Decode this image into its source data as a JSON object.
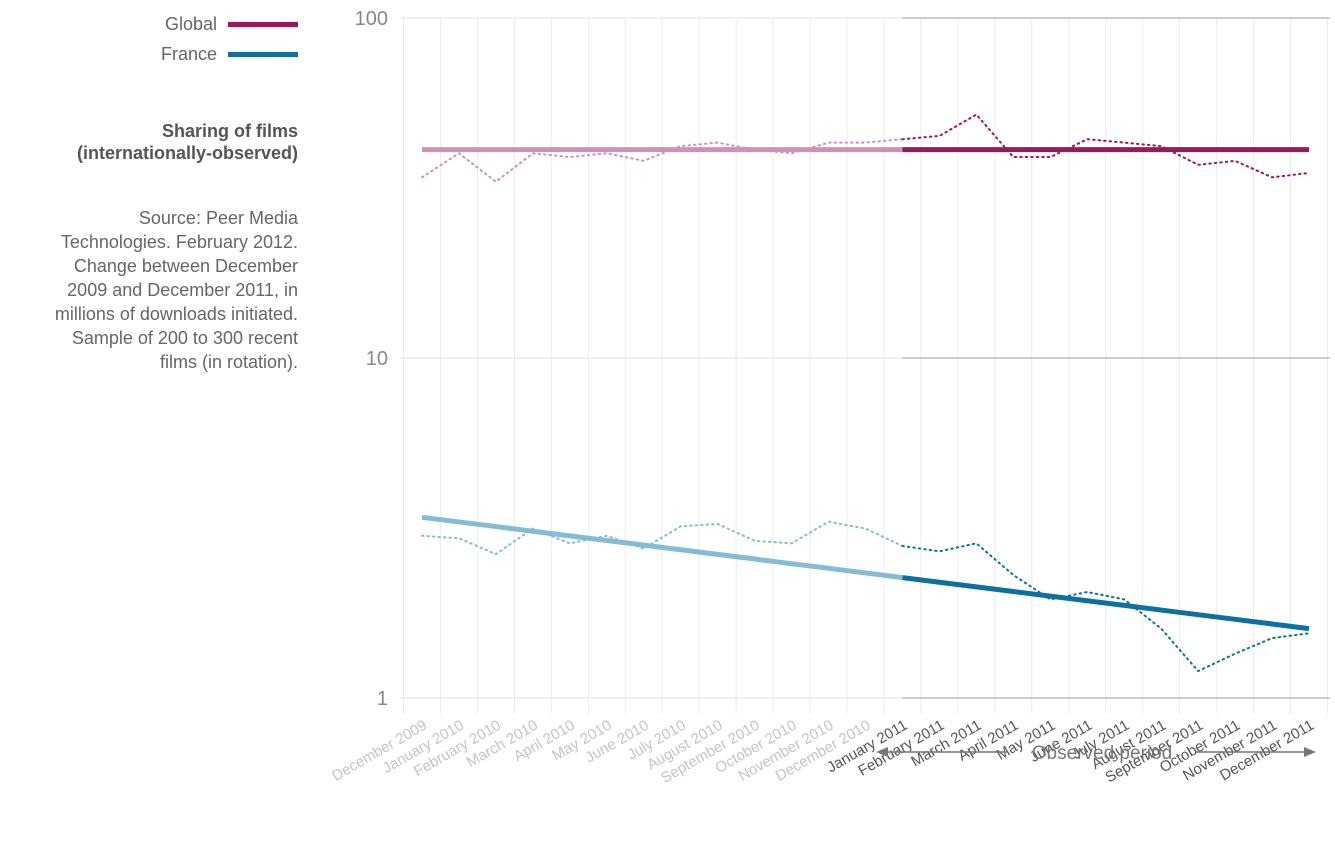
{
  "legend": [
    {
      "label": "Global",
      "color": "#99185e"
    },
    {
      "label": "France",
      "color": "#0e70a1"
    }
  ],
  "heading": {
    "title_line1": "Sharing of films",
    "title_line2": "(internationally-observed)"
  },
  "source": {
    "lines": [
      "Source: Peer Media",
      "Technologies. February 2012.",
      "Change between December",
      "2009 and December 2011, in",
      "millions of downloads initiated.",
      "Sample of 200 to 300 recent",
      "films (in rotation)."
    ]
  },
  "observed_label": "Observed period",
  "chart_data": {
    "type": "line",
    "yscale": "log",
    "ylim": [
      1,
      100
    ],
    "yticks": [
      {
        "value": 1,
        "label": "1"
      },
      {
        "value": 10,
        "label": "10"
      },
      {
        "value": 100,
        "label": "100"
      }
    ],
    "grid": true,
    "legend_position": "top-left",
    "observed_period": {
      "start": "January 2011",
      "end": "December 2011"
    },
    "categories": [
      "December 2009",
      "January 2010",
      "February 2010",
      "March 2010",
      "April 2010",
      "May 2010",
      "June 2010",
      "July 2010",
      "August 2010",
      "September 2010",
      "October 2010",
      "November 2010",
      "December 2010",
      "January 2011",
      "February 2011",
      "March 2011",
      "April 2011",
      "May 2011",
      "June 2011",
      "July 2011",
      "August 2011",
      "September 2011",
      "October 2011",
      "November 2011",
      "December 2011"
    ],
    "series": [
      {
        "name": "Global",
        "color": "#99185e",
        "color_light": "#d290b6",
        "values": [
          34,
          40,
          33,
          40,
          39,
          40,
          38,
          42,
          43,
          41,
          40,
          43,
          43,
          44,
          45,
          52,
          39,
          39,
          44,
          43,
          42,
          37,
          38,
          34,
          35
        ],
        "trend": [
          41,
          41
        ]
      },
      {
        "name": "France",
        "color": "#0e70a1",
        "color_light": "#84bbd6",
        "values": [
          3.0,
          2.95,
          2.65,
          3.15,
          2.85,
          3.0,
          2.75,
          3.2,
          3.25,
          2.9,
          2.85,
          3.3,
          3.15,
          2.8,
          2.7,
          2.85,
          2.3,
          1.95,
          2.05,
          1.95,
          1.6,
          1.2,
          1.35,
          1.5,
          1.55
        ],
        "trend": [
          3.4,
          1.6
        ]
      }
    ]
  }
}
